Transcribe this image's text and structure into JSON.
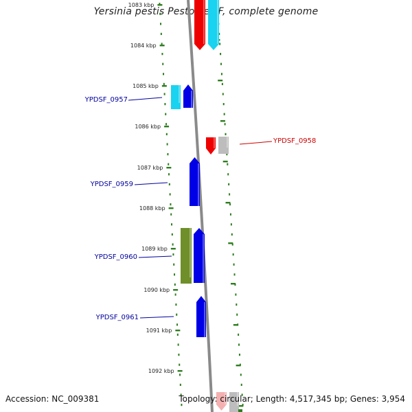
{
  "title": "Yersinia pestis Pestoides F, complete genome",
  "footer": {
    "accession": "Accession: NC_009381",
    "summary": "Topology: circular; Length: 4,517,345 bp; Genes: 3,954"
  },
  "colors": {
    "backbone": "#8a8a8a",
    "ruler_dots": "#2e7d1f",
    "blue_gene": "#0000e6",
    "cyan_gene": "#19d3f0",
    "red_gene": "#ee0000",
    "olive_gene": "#6f8f2a",
    "gray_gene": "#bdbdbd",
    "label_blue": "#00009c",
    "label_red": "#cc0000"
  },
  "ruler": {
    "unit": "kbp",
    "ticks": [
      "1083 kbp",
      "1084 kbp",
      "1085 kbp",
      "1086 kbp",
      "1087 kbp",
      "1088 kbp",
      "1089 kbp",
      "1090 kbp",
      "1091 kbp",
      "1092 kbp"
    ]
  },
  "genes": [
    {
      "label": "YPDSF_0957",
      "label_color": "#00009c",
      "side": "left"
    },
    {
      "label": "YPDSF_0958",
      "label_color": "#cc0000",
      "side": "right"
    },
    {
      "label": "YPDSF_0959",
      "label_color": "#00009c",
      "side": "left"
    },
    {
      "label": "YPDSF_0960",
      "label_color": "#00009c",
      "side": "left"
    },
    {
      "label": "YPDSF_0961",
      "label_color": "#00009c",
      "side": "left"
    }
  ]
}
